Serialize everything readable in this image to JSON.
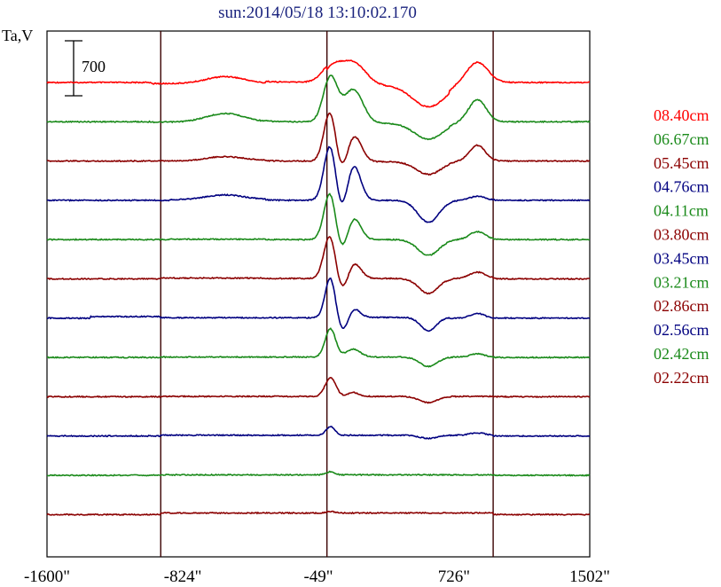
{
  "chart_data": {
    "type": "line",
    "title": "sun:2014/05/18 13:10:02.170",
    "ylabel": "Ta,V",
    "scale_bar_label": "700",
    "xlim": [
      -1600,
      1502
    ],
    "x_ticks": [
      {
        "value": -1600,
        "label": "-1600\""
      },
      {
        "value": -824,
        "label": "-824\""
      },
      {
        "value": -49,
        "label": "-49\""
      },
      {
        "value": 726,
        "label": "726\""
      },
      {
        "value": 1502,
        "label": "1502\""
      }
    ],
    "vertical_markers": [
      -950,
      0,
      950
    ],
    "grid": false,
    "legend_placement": "right",
    "series": [
      {
        "name": "08.40cm",
        "color": "#ff0000",
        "peaks": [
          [
            -580,
            90,
            110
          ],
          [
            30,
            210,
            55
          ],
          [
            150,
            290,
            70
          ],
          [
            580,
            -270,
            90
          ],
          [
            860,
            260,
            60
          ]
        ],
        "baseline_offsets": [
          [
            -1000,
            -350,
            -15
          ],
          [
            -350,
            0,
            5
          ],
          [
            0,
            700,
            -40
          ]
        ]
      },
      {
        "name": "06.67cm",
        "color": "#1a8a1a",
        "peaks": [
          [
            -580,
            110,
            110
          ],
          [
            20,
            580,
            40
          ],
          [
            150,
            430,
            55
          ],
          [
            580,
            -200,
            80
          ],
          [
            860,
            280,
            50
          ]
        ],
        "baseline_offsets": [
          [
            -1000,
            -350,
            -5
          ],
          [
            0,
            700,
            -20
          ]
        ]
      },
      {
        "name": "05.45cm",
        "color": "#8b0000",
        "peaks": [
          [
            -580,
            50,
            110
          ],
          [
            20,
            690,
            35
          ],
          [
            80,
            -260,
            40
          ],
          [
            150,
            360,
            45
          ],
          [
            580,
            -160,
            70
          ],
          [
            860,
            200,
            45
          ]
        ],
        "baseline_offsets": [
          [
            -700,
            -350,
            5
          ],
          [
            0,
            700,
            -10
          ]
        ]
      },
      {
        "name": "04.76cm",
        "color": "#000080",
        "peaks": [
          [
            -580,
            60,
            110
          ],
          [
            20,
            760,
            35
          ],
          [
            80,
            -280,
            40
          ],
          [
            150,
            480,
            40
          ],
          [
            580,
            -280,
            60
          ],
          [
            860,
            50,
            45
          ]
        ],
        "baseline_offsets": [
          [
            -900,
            -350,
            8
          ]
        ]
      },
      {
        "name": "04.11cm",
        "color": "#1a8a1a",
        "peaks": [
          [
            20,
            650,
            35
          ],
          [
            80,
            -250,
            40
          ],
          [
            150,
            300,
            40
          ],
          [
            580,
            -200,
            60
          ],
          [
            860,
            100,
            45
          ]
        ],
        "baseline_offsets": [
          [
            -900,
            -350,
            5
          ]
        ]
      },
      {
        "name": "03.80cm",
        "color": "#8b0000",
        "peaks": [
          [
            20,
            600,
            35
          ],
          [
            80,
            -250,
            40
          ],
          [
            150,
            220,
            40
          ],
          [
            580,
            -190,
            55
          ],
          [
            860,
            80,
            45
          ]
        ],
        "baseline_offsets": [
          [
            -950,
            -350,
            10
          ],
          [
            -350,
            950,
            5
          ]
        ]
      },
      {
        "name": "03.45cm",
        "color": "#000080",
        "peaks": [
          [
            20,
            520,
            30
          ],
          [
            90,
            -200,
            35
          ],
          [
            150,
            130,
            35
          ],
          [
            580,
            -170,
            45
          ],
          [
            860,
            60,
            40
          ]
        ],
        "baseline_offsets": [
          [
            -1350,
            -950,
            20
          ],
          [
            -950,
            0,
            5
          ],
          [
            0,
            700,
            10
          ]
        ]
      },
      {
        "name": "03.21cm",
        "color": "#1a8a1a",
        "peaks": [
          [
            20,
            360,
            30
          ],
          [
            150,
            100,
            40
          ],
          [
            580,
            -120,
            50
          ],
          [
            860,
            40,
            40
          ]
        ],
        "baseline_offsets": [
          [
            -950,
            950,
            5
          ]
        ]
      },
      {
        "name": "02.86cm",
        "color": "#8b0000",
        "peaks": [
          [
            20,
            240,
            30
          ],
          [
            150,
            50,
            30
          ],
          [
            580,
            -80,
            50
          ]
        ],
        "baseline_offsets": [
          [
            -950,
            950,
            4
          ]
        ]
      },
      {
        "name": "02.56cm",
        "color": "#000080",
        "peaks": [
          [
            20,
            110,
            25
          ],
          [
            580,
            -40,
            50
          ],
          [
            860,
            30,
            40
          ]
        ],
        "baseline_offsets": [
          [
            -950,
            950,
            10
          ]
        ]
      },
      {
        "name": "02.42cm",
        "color": "#1a8a1a",
        "peaks": [
          [
            20,
            40,
            25
          ]
        ],
        "baseline_offsets": [
          [
            -950,
            950,
            5
          ]
        ]
      },
      {
        "name": "02.22cm",
        "color": "#8b0000",
        "peaks": [
          [
            20,
            20,
            25
          ]
        ],
        "baseline_offsets": [
          [
            -950,
            950,
            20
          ]
        ]
      }
    ]
  }
}
